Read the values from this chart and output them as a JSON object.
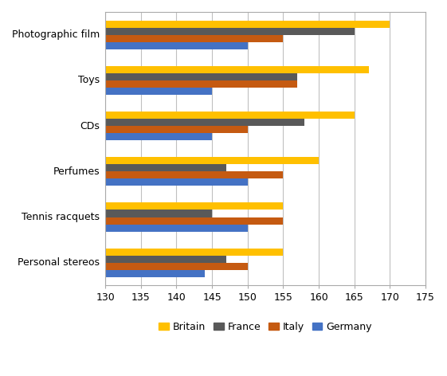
{
  "categories": [
    "Photographic film",
    "Toys",
    "CDs",
    "Perfumes",
    "Tennis racquets",
    "Personal stereos"
  ],
  "series": {
    "Britain": [
      170,
      167,
      165,
      160,
      155,
      155
    ],
    "France": [
      165,
      157,
      158,
      147,
      145,
      147
    ],
    "Italy": [
      155,
      157,
      150,
      155,
      155,
      150
    ],
    "Germany": [
      150,
      145,
      145,
      150,
      150,
      144
    ]
  },
  "colors": {
    "Britain": "#FFC000",
    "France": "#595959",
    "Italy": "#C55A11",
    "Germany": "#4472C4"
  },
  "xlim": [
    130,
    175
  ],
  "xticks": [
    130,
    135,
    140,
    145,
    150,
    155,
    160,
    165,
    170,
    175
  ],
  "legend_order": [
    "Britain",
    "France",
    "Italy",
    "Germany"
  ],
  "background_color": "#FFFFFF",
  "grid_color": "#C0C0C0"
}
